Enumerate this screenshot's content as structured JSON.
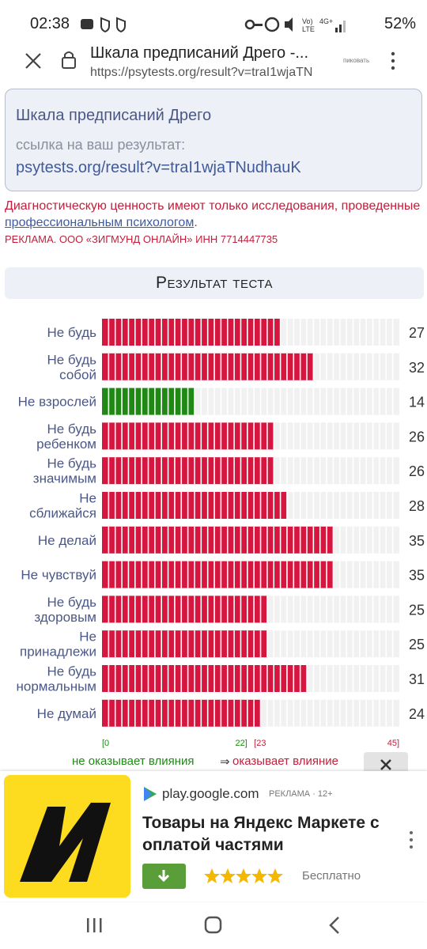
{
  "status_bar": {
    "time": "02:38",
    "battery": "52%"
  },
  "browser": {
    "title": "Шкала предписаний Дрего -...",
    "url": "https://psytests.org/result?v=traI1wjaTN",
    "side_text": "пиковать"
  },
  "card": {
    "title": "Шкала предписаний Дрего",
    "caption": "ссылка на ваш результат:",
    "link": "psytests.org/result?v=traI1wjaTNudhauK"
  },
  "notice": {
    "before": "Диагностическую ценность имеют только исследования, проведенные",
    "link": "профессиональным психологом",
    "after": "."
  },
  "ad_notice": "РЕКЛАМА. ООО «ЗИГМУНД ОНЛАЙН» ИНН 7714447735",
  "chart_data": {
    "type": "bar",
    "orientation": "horizontal",
    "title": "Результат теста",
    "categories": [
      "Не будь",
      "Не будь\nсобой",
      "Не взрослей",
      "Не будь\nребенком",
      "Не будь\nзначимым",
      "Не\nсближайся",
      "Не делай",
      "Не чувствуй",
      "Не будь\nздоровым",
      "Не\nпринадлежи",
      "Не будь\nнормальным",
      "Не думай"
    ],
    "values": [
      27,
      32,
      14,
      26,
      26,
      28,
      35,
      35,
      25,
      25,
      31,
      24
    ],
    "colors": [
      "#d7163f",
      "#d7163f",
      "#1e8a14",
      "#d7163f",
      "#d7163f",
      "#d7163f",
      "#d7163f",
      "#d7163f",
      "#d7163f",
      "#d7163f",
      "#d7163f",
      "#d7163f"
    ],
    "xlim": [
      0,
      45
    ],
    "xticks": [
      {
        "value": 0,
        "label": "[0"
      },
      {
        "value": 22,
        "label": "22]"
      },
      {
        "value": 23,
        "label": "[23"
      },
      {
        "value": 45,
        "label": "45]"
      }
    ],
    "annotations": [
      "не оказывает влияния",
      "⇒",
      "оказывает влияние"
    ]
  },
  "ad": {
    "domain": "play.google.com",
    "label": "РЕКЛАМА · 12+",
    "title": "Товары на Яндекс Маркете с оплатой частями",
    "price": "Бесплатно"
  }
}
